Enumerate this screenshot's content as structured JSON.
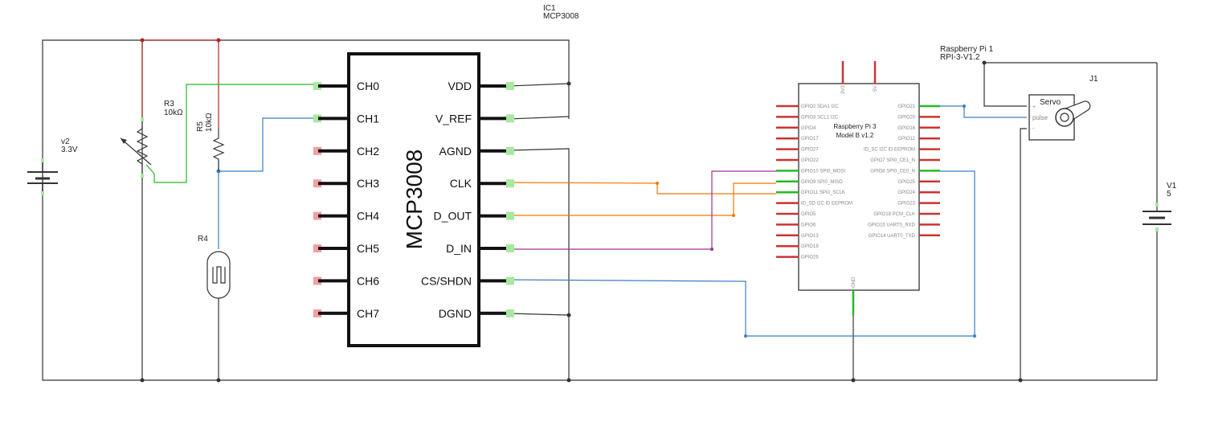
{
  "ic1": {
    "ref": "IC1",
    "part": "MCP3008",
    "title": "MCP3008",
    "left_pins": [
      "CH0",
      "CH1",
      "CH2",
      "CH3",
      "CH4",
      "CH5",
      "CH6",
      "CH7"
    ],
    "right_pins": [
      "VDD",
      "V_REF",
      "AGND",
      "CLK",
      "D_OUT",
      "D_IN",
      "CS/SHDN",
      "DGND"
    ]
  },
  "v2": {
    "ref": "v2",
    "value": "3.3V"
  },
  "r3": {
    "ref": "R3",
    "value": "10kΩ"
  },
  "r5": {
    "ref": "R5",
    "value": "10kΩ"
  },
  "r4": {
    "ref": "R4"
  },
  "rpi": {
    "ref": "Raspberry Pi 1",
    "part": "RPI-3-V1.2",
    "title_line1": "Raspberry Pi 3",
    "title_line2": "Model B v1.2",
    "top_pins": [
      "3V3",
      "5V"
    ],
    "bottom_pin": "GND",
    "left_pins": [
      "GPIO2 SDA1 I2C",
      "GPIO3 SCL1 I2C",
      "GPIO4",
      "GPIO17",
      "GPIO27",
      "GPIO22",
      "GPIO10 SPI0_MOSI",
      "GPIO9 SPI0_MISO",
      "GPIO11 SPI0_SCLK",
      "ID_SD I2C ID EEPROM",
      "GPIO5",
      "GPIO6",
      "GPIO13",
      "GPIO19",
      "GPIO26"
    ],
    "right_pins": [
      "GPIO21",
      "GPIO20",
      "GPIO16",
      "GPIO12",
      "ID_SC I2C ID EEPROM",
      "GPIO7 SPI0_CE1_N",
      "GPIO8 SPI0_CE0_N",
      "GPIO25",
      "GPIO24",
      "GPIO23",
      "GPIO18 PCM_CLK",
      "GPIO15 UART0_RXD",
      "GPIO14 UART0_TXD"
    ]
  },
  "j1": {
    "ref": "J1",
    "title": "Servo",
    "pin_plus": "+",
    "pin_pulse": "pulse",
    "pin_minus": "-"
  },
  "v1": {
    "ref": "V1",
    "value": "5"
  },
  "colors": {
    "wire_black": "#333333",
    "wire_red": "#b22222",
    "wire_green": "#22bb22",
    "wire_blue": "#3a7fc4",
    "wire_orange": "#f07a00",
    "wire_purple": "#993399",
    "pin_red": "#cc3333",
    "pin_red_fill": "#f2a0a0",
    "pin_green_fill": "#a8e8a0"
  }
}
